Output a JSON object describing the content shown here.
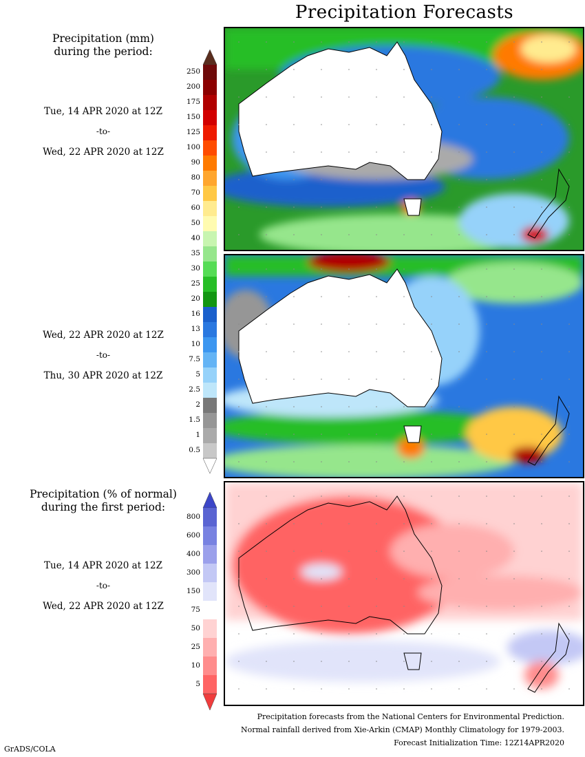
{
  "title": "Precipitation Forecasts",
  "period1": {
    "heading_line1": "Precipitation (mm)",
    "heading_line2": "during the period:",
    "start": "Tue, 14 APR 2020 at 12Z",
    "to": "-to-",
    "end": "Wed, 22 APR 2020 at 12Z"
  },
  "period2": {
    "start": "Wed, 22 APR 2020 at 12Z",
    "to": "-to-",
    "end": "Thu, 30 APR 2020 at 12Z"
  },
  "anomaly": {
    "heading_line1": "Precipitation (% of normal)",
    "heading_line2": "during the first period:",
    "start": "Tue, 14 APR 2020 at 12Z",
    "to": "-to-",
    "end": "Wed, 22 APR 2020 at 12Z"
  },
  "precip_scale": {
    "labels": [
      "250",
      "200",
      "175",
      "150",
      "125",
      "100",
      "90",
      "80",
      "70",
      "60",
      "50",
      "40",
      "35",
      "30",
      "25",
      "20",
      "16",
      "13",
      "10",
      "7.5",
      "5",
      "2.5",
      "2",
      "1.5",
      "1",
      "0.5"
    ],
    "colors": [
      "#6e0a0a",
      "#8c0000",
      "#b00000",
      "#d20000",
      "#ee1a00",
      "#ff4c00",
      "#ff7a00",
      "#ffa62e",
      "#ffc845",
      "#ffeb8f",
      "#fffbb0",
      "#c8f5b0",
      "#96e68c",
      "#55dc55",
      "#26be26",
      "#129612",
      "#1a60cc",
      "#2a78e0",
      "#3c96f0",
      "#64b4f5",
      "#96d2fa",
      "#bee6fa",
      "#787878",
      "#969696",
      "#aaaaaa",
      "#c8c8c8"
    ],
    "top_arrow_color": "#5a2d1e"
  },
  "anomaly_scale": {
    "labels": [
      "800",
      "600",
      "400",
      "300",
      "150",
      "75",
      "50",
      "25",
      "10",
      "5"
    ],
    "colors": [
      "#5a64d2",
      "#7882e1",
      "#9ba0eb",
      "#c3c8f5",
      "#e1e4fa",
      "#ffffff",
      "#ffd2d2",
      "#ffafaf",
      "#ff8c8c",
      "#ff6464"
    ],
    "top_arrow_color": "#3c46c8",
    "bottom_arrow_color": "#f03c3c"
  },
  "footer": {
    "line1": "Precipitation forecasts from the National Centers for Environmental Prediction.",
    "line2": "Normal rainfall derived from Xie-Arkin (CMAP) Monthly Climatology for 1979-2003.",
    "line3": "Forecast Initialization Time: 12Z14APR2020"
  },
  "credit": "GrADS/COLA"
}
